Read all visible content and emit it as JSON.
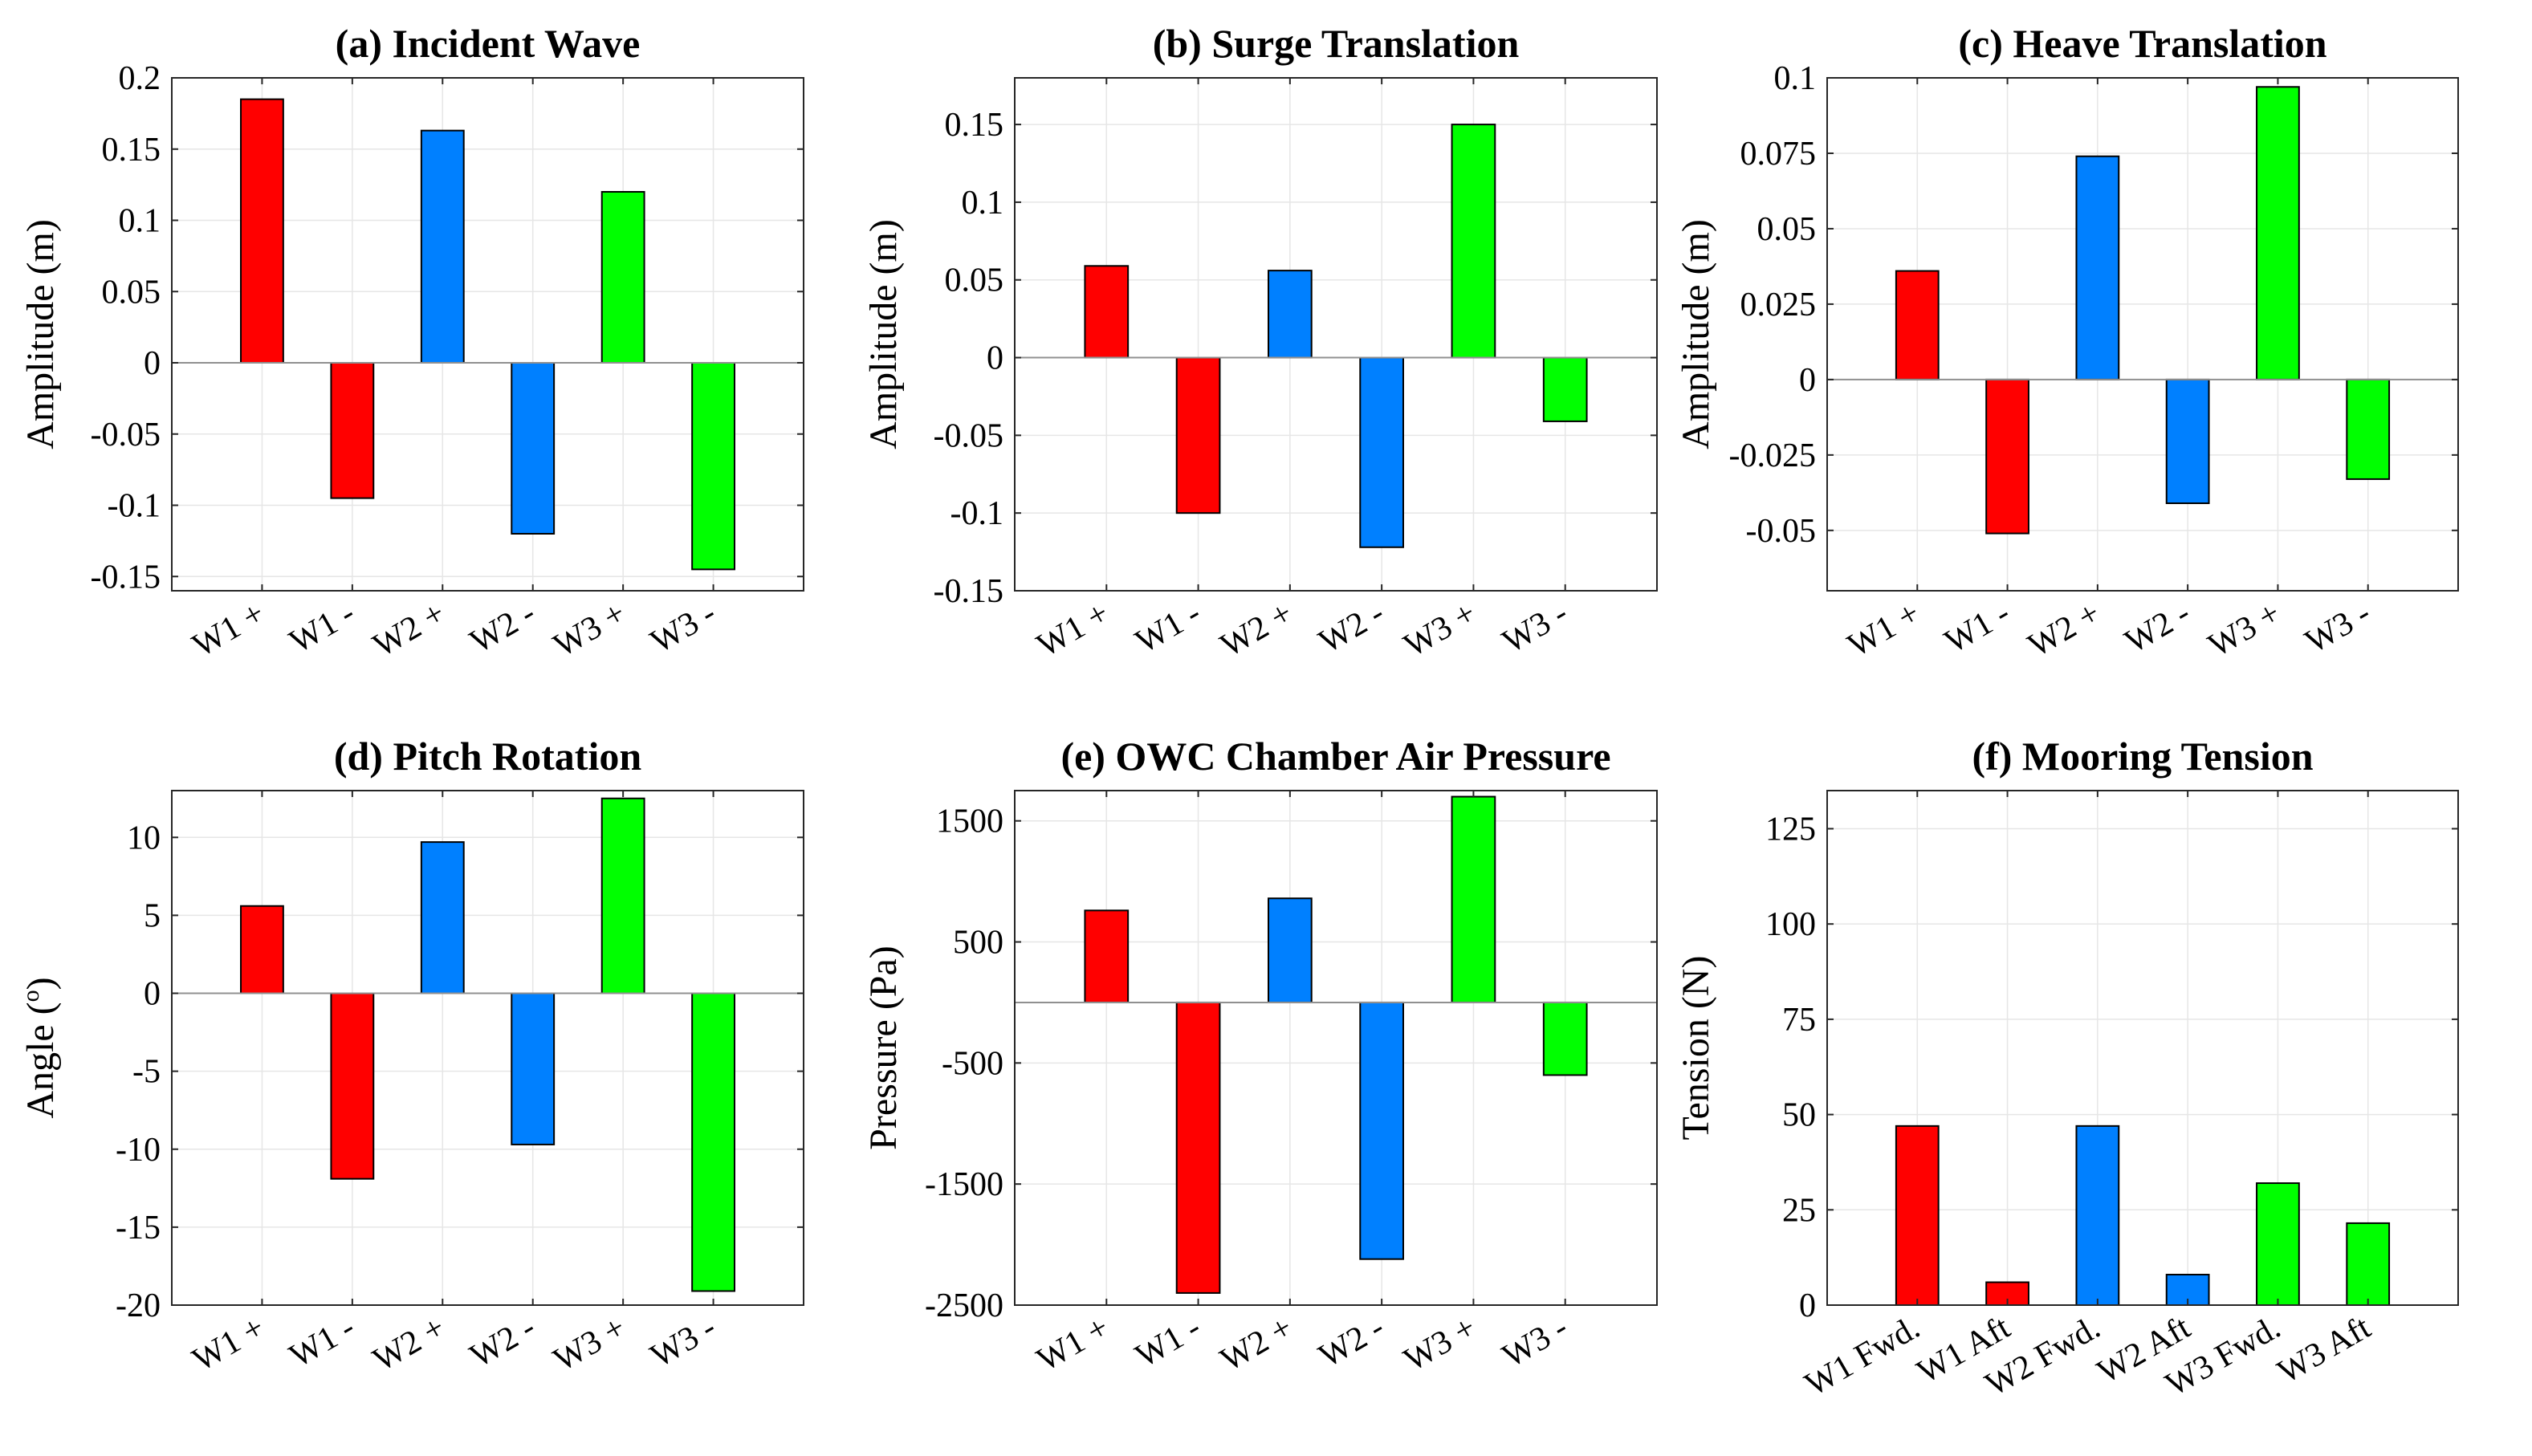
{
  "chart_data": [
    {
      "id": "a",
      "type": "bar",
      "title": "(a) Incident Wave",
      "ylabel": "Amplitude (m)",
      "categories": [
        "W1 +",
        "W1 -",
        "W2 +",
        "W2 -",
        "W3 +",
        "W3 -"
      ],
      "values": [
        0.185,
        -0.095,
        0.163,
        -0.12,
        0.12,
        -0.145
      ],
      "colors": [
        "#ff0000",
        "#ff0000",
        "#0080ff",
        "#0080ff",
        "#00ff00",
        "#00ff00"
      ],
      "ylim": [
        -0.16,
        0.2
      ],
      "yticks": [
        0.2,
        0.15,
        0.1,
        0.05,
        0,
        -0.05,
        -0.1,
        -0.15
      ],
      "ytick_labels": [
        "0.2",
        "0.15",
        "0.1",
        "0.05",
        "0",
        "-0.05",
        "-0.1",
        "-0.15"
      ],
      "grid": true
    },
    {
      "id": "b",
      "type": "bar",
      "title": "(b) Surge Translation",
      "ylabel": "Amplitude (m)",
      "categories": [
        "W1 +",
        "W1 -",
        "W2 +",
        "W2 -",
        "W3 +",
        "W3 -"
      ],
      "values": [
        0.059,
        -0.1,
        0.056,
        -0.122,
        0.15,
        -0.041
      ],
      "colors": [
        "#ff0000",
        "#ff0000",
        "#0080ff",
        "#0080ff",
        "#00ff00",
        "#00ff00"
      ],
      "ylim": [
        -0.15,
        0.18
      ],
      "yticks": [
        0.15,
        0.1,
        0.05,
        0,
        -0.05,
        -0.1,
        -0.15
      ],
      "ytick_labels": [
        "0.15",
        "0.1",
        "0.05",
        "0",
        "-0.05",
        "-0.1",
        "-0.15"
      ],
      "grid": true
    },
    {
      "id": "c",
      "type": "bar",
      "title": "(c) Heave Translation",
      "ylabel": "Amplitude (m)",
      "categories": [
        "W1 +",
        "W1 -",
        "W2 +",
        "W2 -",
        "W3 +",
        "W3 -"
      ],
      "values": [
        0.036,
        -0.051,
        0.074,
        -0.041,
        0.097,
        -0.033
      ],
      "colors": [
        "#ff0000",
        "#ff0000",
        "#0080ff",
        "#0080ff",
        "#00ff00",
        "#00ff00"
      ],
      "ylim": [
        -0.07,
        0.1
      ],
      "yticks": [
        0.1,
        0.075,
        0.05,
        0.025,
        0,
        -0.025,
        -0.05
      ],
      "ytick_labels": [
        "0.1",
        "0.075",
        "0.05",
        "0.025",
        "0",
        "-0.025",
        "-0.05"
      ],
      "grid": true
    },
    {
      "id": "d",
      "type": "bar",
      "title": "(d) Pitch Rotation",
      "ylabel": "Angle (°)",
      "ylabel_main": "Angle (",
      "ylabel_sup": "o",
      "ylabel_tail": ")",
      "categories": [
        "W1 +",
        "W1 -",
        "W2 +",
        "W2 -",
        "W3 +",
        "W3 -"
      ],
      "values": [
        5.6,
        -11.9,
        9.7,
        -9.7,
        12.5,
        -19.1
      ],
      "colors": [
        "#ff0000",
        "#ff0000",
        "#0080ff",
        "#0080ff",
        "#00ff00",
        "#00ff00"
      ],
      "ylim": [
        -20,
        13
      ],
      "yticks": [
        10,
        5,
        0,
        -5,
        -10,
        -15,
        -20
      ],
      "ytick_labels": [
        "10",
        "5",
        "0",
        "-5",
        "-10",
        "-15",
        "-20"
      ],
      "grid": true
    },
    {
      "id": "e",
      "type": "bar",
      "title": "(e) OWC Chamber Air Pressure",
      "ylabel": "Pressure (Pa)",
      "categories": [
        "W1 +",
        "W1 -",
        "W2 +",
        "W2 -",
        "W3 +",
        "W3 -"
      ],
      "values": [
        760,
        -2400,
        860,
        -2120,
        1700,
        -600
      ],
      "colors": [
        "#ff0000",
        "#ff0000",
        "#0080ff",
        "#0080ff",
        "#00ff00",
        "#00ff00"
      ],
      "ylim": [
        -2500,
        1750
      ],
      "yticks": [
        1500,
        500,
        -500,
        -1500,
        -2500
      ],
      "ytick_labels": [
        "1500",
        "500",
        "-500",
        "-1500",
        "-2500"
      ],
      "grid": true
    },
    {
      "id": "f",
      "type": "bar",
      "title": "(f) Mooring Tension",
      "ylabel": "Tension (N)",
      "categories": [
        "W1 Fwd.",
        "W1 Aft",
        "W2 Fwd.",
        "W2 Aft",
        "W3 Fwd.",
        "W3 Aft"
      ],
      "values": [
        47,
        6,
        47,
        8,
        32,
        21.5
      ],
      "colors": [
        "#ff0000",
        "#ff0000",
        "#0080ff",
        "#0080ff",
        "#00ff00",
        "#00ff00"
      ],
      "ylim": [
        0,
        135
      ],
      "yticks": [
        125,
        100,
        75,
        50,
        25,
        0
      ],
      "ytick_labels": [
        "125",
        "100",
        "75",
        "50",
        "25",
        "0"
      ],
      "grid": true
    }
  ]
}
